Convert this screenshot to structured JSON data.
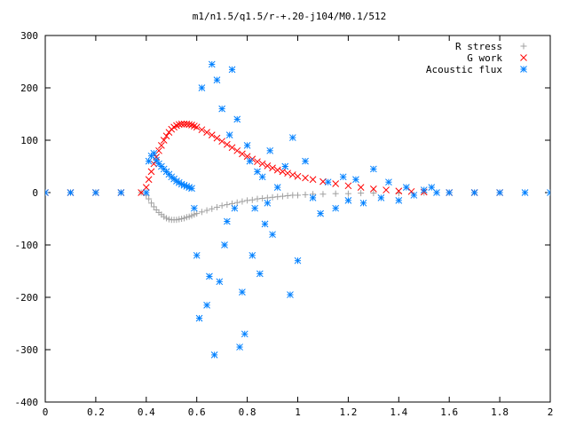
{
  "chart_data": {
    "type": "scatter",
    "title": "m1/n1.5/q1.5/r-+.20-j104/M0.1/512",
    "xlabel": "",
    "ylabel": "",
    "xlim": [
      0,
      2
    ],
    "ylim": [
      -400,
      300
    ],
    "x_ticks": [
      "0",
      "0.2",
      "0.4",
      "0.6",
      "0.8",
      "1",
      "1.2",
      "1.4",
      "1.6",
      "1.8",
      "2"
    ],
    "y_ticks": [
      "300",
      "200",
      "100",
      "0",
      "-100",
      "-200",
      "-300",
      "-400"
    ],
    "x_tick_values": [
      0,
      0.2,
      0.4,
      0.6,
      0.8,
      1,
      1.2,
      1.4,
      1.6,
      1.8,
      2
    ],
    "y_tick_values": [
      300,
      200,
      100,
      0,
      -100,
      -200,
      -300,
      -400
    ],
    "grid": false,
    "legend_position": "top-right",
    "series": [
      {
        "name": "R stress",
        "marker": "plus",
        "color": "#a0a0a0",
        "points": [
          [
            0.0,
            0
          ],
          [
            0.1,
            0
          ],
          [
            0.2,
            0
          ],
          [
            0.3,
            0
          ],
          [
            0.38,
            0
          ],
          [
            0.4,
            -5
          ],
          [
            0.41,
            -12
          ],
          [
            0.42,
            -20
          ],
          [
            0.43,
            -27
          ],
          [
            0.44,
            -33
          ],
          [
            0.45,
            -38
          ],
          [
            0.46,
            -42
          ],
          [
            0.47,
            -46
          ],
          [
            0.48,
            -49
          ],
          [
            0.49,
            -51
          ],
          [
            0.5,
            -52
          ],
          [
            0.51,
            -52
          ],
          [
            0.52,
            -52
          ],
          [
            0.53,
            -51
          ],
          [
            0.54,
            -50
          ],
          [
            0.55,
            -49
          ],
          [
            0.56,
            -47
          ],
          [
            0.57,
            -46
          ],
          [
            0.58,
            -44
          ],
          [
            0.59,
            -42
          ],
          [
            0.6,
            -40
          ],
          [
            0.62,
            -37
          ],
          [
            0.64,
            -34
          ],
          [
            0.66,
            -31
          ],
          [
            0.68,
            -28
          ],
          [
            0.7,
            -25
          ],
          [
            0.72,
            -23
          ],
          [
            0.74,
            -21
          ],
          [
            0.76,
            -19
          ],
          [
            0.78,
            -17
          ],
          [
            0.8,
            -15
          ],
          [
            0.82,
            -14
          ],
          [
            0.84,
            -12
          ],
          [
            0.86,
            -11
          ],
          [
            0.88,
            -10
          ],
          [
            0.9,
            -9
          ],
          [
            0.92,
            -8
          ],
          [
            0.94,
            -7
          ],
          [
            0.96,
            -6
          ],
          [
            0.98,
            -5
          ],
          [
            1.0,
            -5
          ],
          [
            1.03,
            -4
          ],
          [
            1.06,
            -3
          ],
          [
            1.1,
            -3
          ],
          [
            1.15,
            -2
          ],
          [
            1.2,
            -2
          ],
          [
            1.25,
            -1
          ],
          [
            1.3,
            -1
          ],
          [
            1.4,
            -1
          ],
          [
            1.5,
            0
          ],
          [
            1.6,
            0
          ],
          [
            1.7,
            0
          ],
          [
            1.8,
            0
          ]
        ]
      },
      {
        "name": "G work",
        "marker": "cross",
        "color": "#ff0000",
        "points": [
          [
            0.0,
            0
          ],
          [
            0.1,
            0
          ],
          [
            0.2,
            0
          ],
          [
            0.3,
            0
          ],
          [
            0.38,
            0
          ],
          [
            0.4,
            10
          ],
          [
            0.41,
            25
          ],
          [
            0.42,
            40
          ],
          [
            0.43,
            55
          ],
          [
            0.44,
            68
          ],
          [
            0.45,
            80
          ],
          [
            0.46,
            90
          ],
          [
            0.47,
            100
          ],
          [
            0.48,
            108
          ],
          [
            0.49,
            115
          ],
          [
            0.5,
            121
          ],
          [
            0.51,
            125
          ],
          [
            0.52,
            128
          ],
          [
            0.53,
            130
          ],
          [
            0.54,
            131
          ],
          [
            0.55,
            131
          ],
          [
            0.56,
            131
          ],
          [
            0.57,
            130
          ],
          [
            0.58,
            129
          ],
          [
            0.59,
            127
          ],
          [
            0.6,
            125
          ],
          [
            0.62,
            120
          ],
          [
            0.64,
            115
          ],
          [
            0.66,
            110
          ],
          [
            0.68,
            104
          ],
          [
            0.7,
            98
          ],
          [
            0.72,
            92
          ],
          [
            0.74,
            86
          ],
          [
            0.76,
            80
          ],
          [
            0.78,
            74
          ],
          [
            0.8,
            69
          ],
          [
            0.82,
            64
          ],
          [
            0.84,
            59
          ],
          [
            0.86,
            55
          ],
          [
            0.88,
            51
          ],
          [
            0.9,
            47
          ],
          [
            0.92,
            43
          ],
          [
            0.94,
            40
          ],
          [
            0.96,
            37
          ],
          [
            0.98,
            34
          ],
          [
            1.0,
            31
          ],
          [
            1.03,
            28
          ],
          [
            1.06,
            25
          ],
          [
            1.1,
            21
          ],
          [
            1.15,
            17
          ],
          [
            1.2,
            13
          ],
          [
            1.25,
            10
          ],
          [
            1.3,
            7
          ],
          [
            1.35,
            5
          ],
          [
            1.4,
            3
          ],
          [
            1.45,
            2
          ],
          [
            1.5,
            1
          ],
          [
            1.6,
            0
          ],
          [
            1.7,
            0
          ],
          [
            1.8,
            0
          ]
        ]
      },
      {
        "name": "Acoustic flux",
        "marker": "star",
        "color": "#0080ff",
        "points": [
          [
            0.0,
            0
          ],
          [
            0.1,
            0
          ],
          [
            0.2,
            0
          ],
          [
            0.3,
            0
          ],
          [
            0.4,
            0
          ],
          [
            0.41,
            60
          ],
          [
            0.42,
            70
          ],
          [
            0.43,
            75
          ],
          [
            0.44,
            62
          ],
          [
            0.45,
            55
          ],
          [
            0.46,
            50
          ],
          [
            0.47,
            45
          ],
          [
            0.48,
            40
          ],
          [
            0.49,
            35
          ],
          [
            0.5,
            30
          ],
          [
            0.51,
            26
          ],
          [
            0.52,
            22
          ],
          [
            0.53,
            19
          ],
          [
            0.54,
            16
          ],
          [
            0.55,
            14
          ],
          [
            0.56,
            12
          ],
          [
            0.57,
            10
          ],
          [
            0.58,
            8
          ],
          [
            0.59,
            -30
          ],
          [
            0.6,
            -120
          ],
          [
            0.61,
            -240
          ],
          [
            0.62,
            200
          ],
          [
            0.64,
            -215
          ],
          [
            0.65,
            -160
          ],
          [
            0.66,
            245
          ],
          [
            0.67,
            -310
          ],
          [
            0.68,
            215
          ],
          [
            0.69,
            -170
          ],
          [
            0.7,
            160
          ],
          [
            0.71,
            -100
          ],
          [
            0.72,
            -55
          ],
          [
            0.73,
            110
          ],
          [
            0.74,
            235
          ],
          [
            0.75,
            -30
          ],
          [
            0.76,
            140
          ],
          [
            0.77,
            -295
          ],
          [
            0.78,
            -190
          ],
          [
            0.79,
            -270
          ],
          [
            0.8,
            90
          ],
          [
            0.81,
            60
          ],
          [
            0.82,
            -120
          ],
          [
            0.83,
            -30
          ],
          [
            0.84,
            40
          ],
          [
            0.85,
            -155
          ],
          [
            0.86,
            30
          ],
          [
            0.87,
            -60
          ],
          [
            0.88,
            -20
          ],
          [
            0.89,
            80
          ],
          [
            0.9,
            -80
          ],
          [
            0.92,
            10
          ],
          [
            0.95,
            50
          ],
          [
            0.97,
            -195
          ],
          [
            0.98,
            105
          ],
          [
            1.0,
            -130
          ],
          [
            1.03,
            60
          ],
          [
            1.06,
            -10
          ],
          [
            1.09,
            -40
          ],
          [
            1.12,
            20
          ],
          [
            1.15,
            -30
          ],
          [
            1.18,
            30
          ],
          [
            1.2,
            -15
          ],
          [
            1.23,
            25
          ],
          [
            1.26,
            -20
          ],
          [
            1.3,
            45
          ],
          [
            1.33,
            -10
          ],
          [
            1.36,
            20
          ],
          [
            1.4,
            -15
          ],
          [
            1.43,
            10
          ],
          [
            1.46,
            -5
          ],
          [
            1.5,
            5
          ],
          [
            1.53,
            10
          ],
          [
            1.55,
            0
          ],
          [
            1.6,
            0
          ],
          [
            1.7,
            0
          ],
          [
            1.8,
            0
          ],
          [
            1.9,
            0
          ],
          [
            2.0,
            0
          ]
        ]
      }
    ]
  }
}
